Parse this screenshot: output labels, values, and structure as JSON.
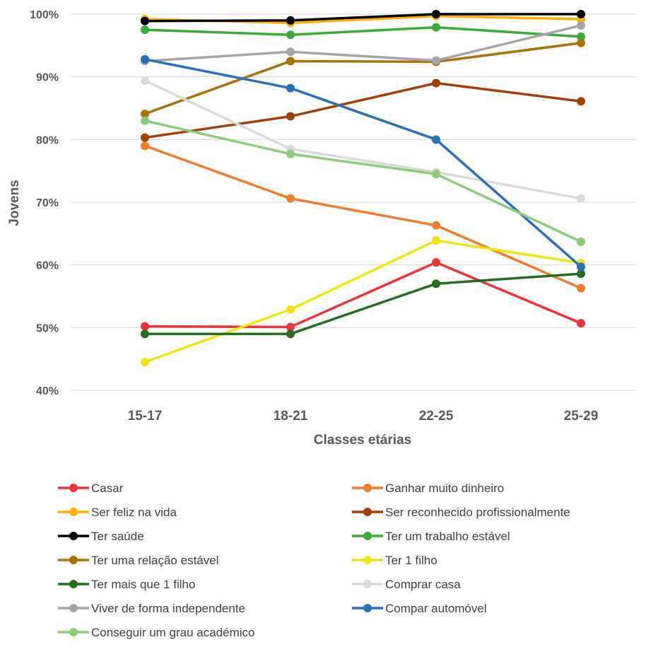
{
  "chart_data": {
    "type": "line",
    "title": "",
    "xlabel": "Classes etárias",
    "ylabel": "Jovens",
    "categories": [
      "15-17",
      "18-21",
      "22-25",
      "25-29"
    ],
    "ylim": [
      40,
      100
    ],
    "yticks": [
      40,
      50,
      60,
      70,
      80,
      90,
      100
    ],
    "ytick_labels": [
      "40%",
      "50%",
      "60%",
      "70%",
      "80%",
      "90%",
      "100%"
    ],
    "grid": true,
    "legend_position": "bottom",
    "series": [
      {
        "name": "Casar",
        "color": "#E8343A",
        "values": [
          50.2,
          50.1,
          60.4,
          50.7
        ]
      },
      {
        "name": "Ganhar muito dinheiro",
        "color": "#ED7D31",
        "values": [
          79.0,
          70.6,
          66.3,
          56.3
        ]
      },
      {
        "name": "Ser feliz na vida",
        "color": "#FFB000",
        "values": [
          99.2,
          98.6,
          99.7,
          99.2
        ]
      },
      {
        "name": "Ser reconhecido profissionalmente",
        "color": "#A0400A",
        "values": [
          80.3,
          83.7,
          89.0,
          86.1
        ]
      },
      {
        "name": "Ter saúde",
        "color": "#000000",
        "values": [
          98.9,
          99.0,
          100.0,
          100.0
        ]
      },
      {
        "name": "Ter um trabalho estável",
        "color": "#3DAA3B",
        "values": [
          97.5,
          96.7,
          97.9,
          96.4
        ]
      },
      {
        "name": "Ter uma relação estável",
        "color": "#A8740A",
        "values": [
          84.1,
          92.5,
          92.4,
          95.4
        ]
      },
      {
        "name": "Ter 1 filho",
        "color": "#EDE518",
        "values": [
          44.5,
          52.9,
          63.9,
          60.3
        ]
      },
      {
        "name": "Ter mais que 1 filho",
        "color": "#276B24",
        "values": [
          49.0,
          49.0,
          57.0,
          58.6
        ]
      },
      {
        "name": "Comprar casa",
        "color": "#D9D9D9",
        "values": [
          89.4,
          78.5,
          74.8,
          70.6
        ]
      },
      {
        "name": "Viver de forma independente",
        "color": "#A5A5A5",
        "values": [
          92.5,
          94.0,
          92.6,
          98.2
        ]
      },
      {
        "name": "Compar automóvel",
        "color": "#2E6EB5",
        "values": [
          92.8,
          88.2,
          80.0,
          59.7
        ]
      },
      {
        "name": "Conseguir um grau académico",
        "color": "#8FCB7F",
        "values": [
          83.0,
          77.7,
          74.5,
          63.7
        ]
      }
    ]
  }
}
